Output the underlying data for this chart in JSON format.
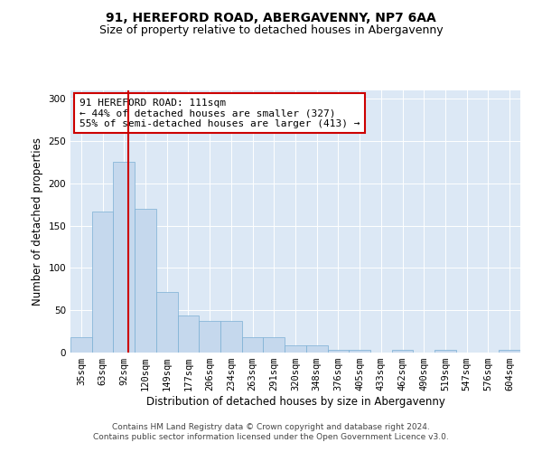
{
  "title": "91, HEREFORD ROAD, ABERGAVENNY, NP7 6AA",
  "subtitle": "Size of property relative to detached houses in Abergavenny",
  "xlabel": "Distribution of detached houses by size in Abergavenny",
  "ylabel": "Number of detached properties",
  "categories": [
    "35sqm",
    "63sqm",
    "92sqm",
    "120sqm",
    "149sqm",
    "177sqm",
    "206sqm",
    "234sqm",
    "263sqm",
    "291sqm",
    "320sqm",
    "348sqm",
    "376sqm",
    "405sqm",
    "433sqm",
    "462sqm",
    "490sqm",
    "519sqm",
    "547sqm",
    "576sqm",
    "604sqm"
  ],
  "values": [
    18,
    167,
    226,
    170,
    72,
    44,
    37,
    37,
    18,
    18,
    9,
    9,
    3,
    3,
    0,
    3,
    0,
    3,
    0,
    0,
    3
  ],
  "bar_color": "#c5d8ed",
  "bar_edge_color": "#7aafd4",
  "vline_x": 2.2,
  "vline_color": "#cc0000",
  "annotation_text": "91 HEREFORD ROAD: 111sqm\n← 44% of detached houses are smaller (327)\n55% of semi-detached houses are larger (413) →",
  "annotation_box_color": "#ffffff",
  "annotation_box_edge_color": "#cc0000",
  "ylim": [
    0,
    310
  ],
  "yticks": [
    0,
    50,
    100,
    150,
    200,
    250,
    300
  ],
  "background_color": "#dce8f5",
  "footer_text": "Contains HM Land Registry data © Crown copyright and database right 2024.\nContains public sector information licensed under the Open Government Licence v3.0.",
  "title_fontsize": 10,
  "subtitle_fontsize": 9,
  "xlabel_fontsize": 8.5,
  "ylabel_fontsize": 8.5,
  "tick_fontsize": 7.5,
  "annotation_fontsize": 8,
  "footer_fontsize": 6.5
}
